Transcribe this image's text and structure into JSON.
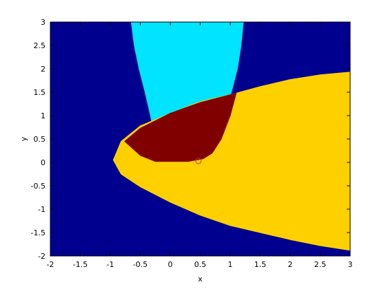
{
  "chart_data": {
    "type": "heatmap",
    "title": "",
    "xlabel": "x",
    "ylabel": "y",
    "xlim": [
      -2,
      3
    ],
    "ylim": [
      -2,
      3
    ],
    "xticks": [
      -2,
      -1.5,
      -1,
      -0.5,
      0,
      0.5,
      1,
      1.5,
      2,
      2.5,
      3
    ],
    "yticks": [
      -2,
      -1.5,
      -1,
      -0.5,
      0,
      0.5,
      1,
      1.5,
      2,
      2.5,
      3
    ],
    "xtick_labels": [
      "-2",
      "-1.5",
      "-1",
      "-0.5",
      "0",
      "0.5",
      "1",
      "1.5",
      "2",
      "2.5",
      "3"
    ],
    "ytick_labels": [
      "-2",
      "-1.5",
      "-1",
      "-0.5",
      "0",
      "0.5",
      "1",
      "1.5",
      "2",
      "2.5",
      "3"
    ],
    "grid": false,
    "colors": {
      "background": "#00008f",
      "region_parabola": "#00e4ff",
      "region_ellipse": "#ffd000",
      "region_overlap": "#800000",
      "marker": "#c0392b"
    },
    "regions": [
      {
        "name": "parabola-region",
        "color_key": "region_parabola",
        "boundary_points": [
          [
            -0.65,
            3
          ],
          [
            -0.6,
            2.5
          ],
          [
            -0.52,
            2
          ],
          [
            -0.42,
            1.5
          ],
          [
            -0.33,
            1
          ],
          [
            -0.25,
            0.5
          ],
          [
            0.72,
            0.5
          ],
          [
            0.88,
            1
          ],
          [
            1.02,
            1.5
          ],
          [
            1.12,
            2
          ],
          [
            1.18,
            2.5
          ],
          [
            1.22,
            3
          ]
        ]
      },
      {
        "name": "ellipse-region",
        "color_key": "region_ellipse",
        "boundary_points": [
          [
            -0.95,
            0.05
          ],
          [
            -0.82,
            0.45
          ],
          [
            -0.5,
            0.78
          ],
          [
            0,
            1.05
          ],
          [
            0.5,
            1.3
          ],
          [
            1.1,
            1.48
          ],
          [
            1.5,
            1.62
          ],
          [
            2,
            1.77
          ],
          [
            2.5,
            1.87
          ],
          [
            3,
            1.93
          ],
          [
            3,
            -1.88
          ],
          [
            2.5,
            -1.78
          ],
          [
            2,
            -1.65
          ],
          [
            1.5,
            -1.5
          ],
          [
            1,
            -1.35
          ],
          [
            0.5,
            -1.13
          ],
          [
            0,
            -0.85
          ],
          [
            -0.5,
            -0.52
          ],
          [
            -0.82,
            -0.25
          ],
          [
            -0.95,
            0.05
          ]
        ]
      },
      {
        "name": "overlap-region",
        "color_key": "region_overlap",
        "boundary_points": [
          [
            -0.76,
            0.45
          ],
          [
            -0.5,
            0.73
          ],
          [
            0,
            1.05
          ],
          [
            0.5,
            1.28
          ],
          [
            1.1,
            1.48
          ],
          [
            1.0,
            1.0
          ],
          [
            0.85,
            0.5
          ],
          [
            0.7,
            0.2
          ],
          [
            0.55,
            0.08
          ],
          [
            0.3,
            0.02
          ],
          [
            -0.25,
            0.02
          ],
          [
            -0.5,
            0.15
          ],
          [
            -0.76,
            0.45
          ]
        ]
      }
    ],
    "markers": [
      {
        "name": "circle-marker",
        "x": 0.47,
        "y": 0.03
      }
    ]
  }
}
